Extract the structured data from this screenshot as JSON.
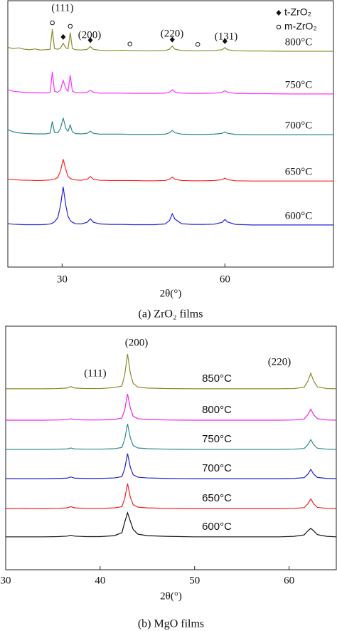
{
  "chart_data": [
    {
      "type": "line",
      "xlabel": "2θ(°)",
      "caption": "(a) ZrO₂ films",
      "annotations": [
        "(111)",
        "(200)",
        "(220)",
        "(131)"
      ],
      "xlim": [
        20,
        80
      ],
      "ylim": [
        0,
        100
      ],
      "xticks": [
        30,
        60
      ],
      "markers": [
        {
          "name": "t-ZrO₂",
          "symbol": "diamond",
          "x": [
            30.2,
            35.2,
            50.3,
            60
          ]
        },
        {
          "name": "m-ZrO₂",
          "symbol": "circle",
          "x": [
            28.2,
            31.5,
            42.5,
            55
          ]
        }
      ],
      "x": [
        20,
        21,
        22,
        23,
        24,
        25,
        26,
        27,
        27.8,
        28.2,
        28.6,
        29.2,
        29.7,
        30.2,
        30.7,
        31.1,
        31.5,
        31.9,
        32.5,
        33.5,
        34.6,
        35.2,
        35.8,
        37,
        39,
        41,
        43,
        45,
        47,
        49,
        49.8,
        50.3,
        50.8,
        52,
        54,
        56,
        58,
        59.5,
        60,
        60.5,
        62,
        65,
        68,
        71,
        74,
        77,
        80
      ],
      "series": [
        {
          "name": "800°C",
          "color": "#8b8b2a",
          "values": [
            82.5,
            82,
            82.3,
            81.8,
            81.6,
            81.9,
            81.5,
            81.6,
            81.8,
            89.3,
            82,
            81.8,
            82.2,
            84,
            82.3,
            82,
            88,
            82,
            81.6,
            81.5,
            81.7,
            82.8,
            81.7,
            81.4,
            81.3,
            81.4,
            81.3,
            81.2,
            81.2,
            81.3,
            81.8,
            83,
            81.8,
            81.3,
            81.2,
            81.2,
            81.3,
            81.6,
            82.4,
            81.6,
            81.2,
            81.1,
            81.1,
            81,
            81,
            81,
            81
          ]
        },
        {
          "name": "750°C",
          "color": "#ff33ff",
          "values": [
            66.6,
            66,
            65.8,
            65.6,
            65.5,
            65.5,
            65.4,
            65.4,
            65.6,
            73.3,
            66,
            65.6,
            66.5,
            70.1,
            67,
            66,
            72,
            66,
            65.5,
            65.4,
            65.6,
            66.4,
            65.6,
            65.3,
            65.3,
            65.3,
            65.2,
            65.2,
            65.2,
            65.3,
            65.7,
            66.6,
            65.7,
            65.3,
            65.2,
            65.2,
            65.3,
            65.6,
            66.2,
            65.6,
            65.2,
            65.1,
            65.1,
            65,
            65,
            65,
            65
          ]
        },
        {
          "name": "700°C",
          "color": "#2e8b8b",
          "values": [
            51.6,
            50.8,
            50.4,
            50.2,
            50.1,
            50,
            50,
            50,
            50.3,
            54.7,
            50.5,
            50.4,
            52,
            56,
            52,
            51,
            53.3,
            50.7,
            50.1,
            50,
            50.2,
            51,
            50.2,
            49.9,
            49.9,
            49.9,
            49.8,
            49.8,
            49.8,
            49.9,
            50.4,
            51.3,
            50.4,
            49.9,
            49.8,
            49.8,
            49.9,
            50.2,
            50.8,
            50.2,
            49.8,
            49.7,
            49.7,
            49.7,
            49.7,
            49.7,
            49.7
          ]
        },
        {
          "name": "650°C",
          "color": "#ff2222",
          "values": [
            33,
            32.8,
            32.7,
            32.6,
            32.6,
            32.5,
            32.5,
            32.6,
            32.7,
            32.9,
            33,
            33.6,
            36,
            40.5,
            36.5,
            34,
            33.3,
            32.9,
            32.7,
            32.6,
            32.9,
            34,
            32.9,
            32.6,
            32.5,
            32.5,
            32.5,
            32.4,
            32.4,
            32.5,
            33,
            33.8,
            33,
            32.5,
            32.4,
            32.4,
            32.5,
            32.8,
            33.4,
            32.8,
            32.4,
            32.3,
            32.3,
            32.3,
            32.3,
            32.3,
            32.3
          ]
        },
        {
          "name": "600°C",
          "color": "#2222dd",
          "values": [
            16.3,
            16.1,
            16,
            15.9,
            15.9,
            15.9,
            15.9,
            16,
            16.2,
            16.5,
            17,
            18.5,
            23,
            30.1,
            23,
            19,
            17.5,
            16.8,
            16.3,
            16.2,
            16.8,
            18.1,
            16.8,
            16.2,
            16,
            16,
            15.9,
            15.9,
            15.9,
            16.2,
            17.5,
            20,
            18,
            16.3,
            16,
            16,
            16.1,
            16.8,
            17.9,
            16.9,
            16,
            15.8,
            15.8,
            15.8,
            15.8,
            15.8,
            15.8
          ]
        }
      ]
    },
    {
      "type": "line",
      "xlabel": "2θ(°)",
      "caption": "(b) MgO films",
      "annotations": [
        "(111)",
        "(200)",
        "(220)"
      ],
      "xlim": [
        30,
        65
      ],
      "ylim": [
        0,
        100
      ],
      "xticks": [
        30,
        40,
        50,
        60
      ],
      "x": [
        30,
        32,
        34,
        35.5,
        36.5,
        36.9,
        37.3,
        38.5,
        40,
        41.5,
        42.3,
        42.6,
        42.9,
        43.2,
        43.5,
        44,
        45,
        47,
        50,
        53,
        56,
        59,
        60.5,
        61.6,
        62,
        62.3,
        62.6,
        63,
        64,
        65
      ],
      "series": [
        {
          "name": "850°C",
          "color": "#8b8b2a",
          "values": [
            74.3,
            74.3,
            74.3,
            74.4,
            74.6,
            75.2,
            74.6,
            74.4,
            74.4,
            74.8,
            75.4,
            80,
            88.6,
            80.7,
            76.5,
            75,
            74.6,
            74.4,
            74.3,
            74.3,
            74.3,
            74.3,
            74.4,
            74.9,
            77.5,
            80.7,
            77.5,
            75.1,
            74.4,
            74.3
          ]
        },
        {
          "name": "800°C",
          "color": "#ee22ee",
          "values": [
            61.4,
            61.4,
            61.4,
            61.5,
            61.6,
            62,
            61.6,
            61.5,
            61.5,
            61.7,
            62.3,
            65.7,
            72.2,
            66.3,
            63,
            62,
            61.7,
            61.5,
            61.4,
            61.4,
            61.4,
            61.4,
            61.5,
            61.9,
            63.7,
            65.9,
            63.7,
            62,
            61.5,
            61.4
          ]
        },
        {
          "name": "750°C",
          "color": "#2e8b8b",
          "values": [
            49.4,
            49.4,
            49.4,
            49.5,
            49.6,
            50,
            49.6,
            49.5,
            49.5,
            49.7,
            50.2,
            53.6,
            59.9,
            54.1,
            51,
            50,
            49.7,
            49.5,
            49.4,
            49.4,
            49.4,
            49.4,
            49.5,
            49.8,
            51.4,
            53.4,
            51.4,
            49.9,
            49.5,
            49.4
          ]
        },
        {
          "name": "700°C",
          "color": "#2222cc",
          "values": [
            37.4,
            37.4,
            37.4,
            37.5,
            37.6,
            38.1,
            37.6,
            37.5,
            37.5,
            37.7,
            38.2,
            41.5,
            47.7,
            42,
            39,
            38,
            37.7,
            37.5,
            37.4,
            37.4,
            37.4,
            37.4,
            37.5,
            37.8,
            39.3,
            41.2,
            39.3,
            37.9,
            37.5,
            37.4
          ]
        },
        {
          "name": "650°C",
          "color": "#ee2222",
          "values": [
            25.1,
            25.2,
            25.1,
            25.2,
            25.4,
            25.9,
            25.4,
            25.2,
            25.2,
            25.4,
            25.9,
            29.2,
            35.4,
            29.7,
            26.7,
            25.7,
            25.4,
            25.2,
            25.1,
            25.1,
            25.1,
            25.1,
            25.2,
            25.5,
            27.1,
            29.1,
            27.1,
            25.6,
            25.2,
            25.1
          ]
        },
        {
          "name": "600°C",
          "color": "#111111",
          "values": [
            13.5,
            13.5,
            13.5,
            13.6,
            13.8,
            14.2,
            13.8,
            13.6,
            13.6,
            14,
            15.2,
            19.5,
            23.4,
            19.9,
            16.5,
            14.6,
            14,
            13.7,
            13.5,
            13.5,
            13.5,
            13.5,
            13.7,
            14.3,
            16,
            17,
            16,
            14.4,
            13.7,
            13.5
          ]
        }
      ]
    }
  ]
}
